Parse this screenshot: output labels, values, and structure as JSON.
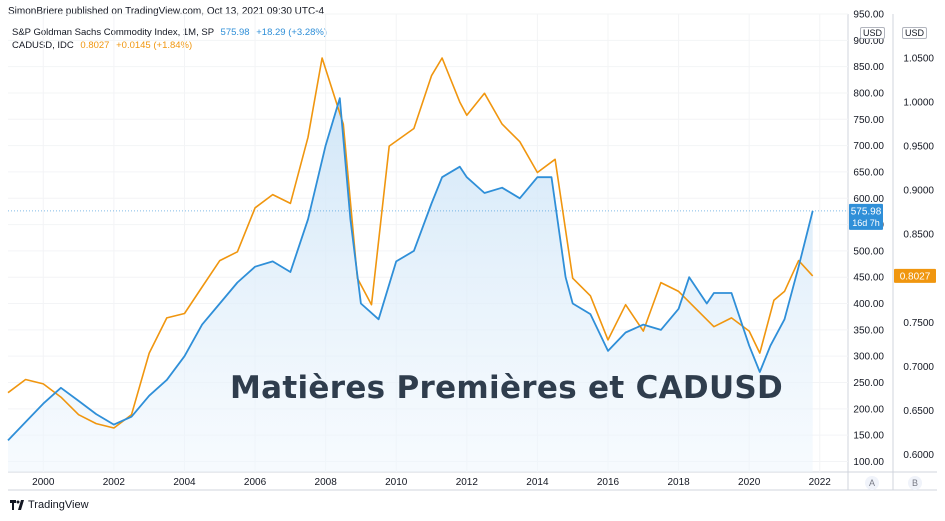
{
  "header": {
    "published": "SimonBriere published on TradingView.com, Oct 13, 2021 09:30 UTC-4"
  },
  "legend": {
    "series1_name": "S&P Goldman Sachs Commodity Index, 1M, SP",
    "series1_value": "575.98",
    "series1_change": "+18.29 (+3.28%)",
    "series2_name": "CADUSD, IDC",
    "series2_value": "0.8027",
    "series2_change": "+0.0145 (+1.84%)"
  },
  "overlay_title": "Matières Premières et CADUSD",
  "axis_units": {
    "left": "USD",
    "right": "USD"
  },
  "axis_buttons": {
    "a": "A",
    "b": "B"
  },
  "price_labels": {
    "gsci": "575.98",
    "gsci_countdown": "16d 7h",
    "cad": "0.8027"
  },
  "footer": {
    "brand": "TradingView"
  },
  "colors": {
    "gsci": "#2f8fd8",
    "cad": "#f0960f",
    "fill": "#d7e9f8",
    "grid": "#eef0f3",
    "text": "#131722"
  },
  "chart_data": {
    "type": "line",
    "title": "Matières Premières et CADUSD",
    "x_ticks": [
      "2000",
      "2002",
      "2004",
      "2006",
      "2008",
      "2010",
      "2012",
      "2014",
      "2016",
      "2018",
      "2020",
      "2022"
    ],
    "left_axis": {
      "label": "USD",
      "ticks": [
        "100.00",
        "150.00",
        "200.00",
        "250.00",
        "300.00",
        "350.00",
        "400.00",
        "450.00",
        "500.00",
        "550.00",
        "600.00",
        "650.00",
        "700.00",
        "750.00",
        "800.00",
        "850.00",
        "900.00",
        "950.00"
      ],
      "range": [
        80,
        950
      ]
    },
    "right_axis": {
      "label": "USD",
      "ticks": [
        "0.6000",
        "0.6500",
        "0.7000",
        "0.7500",
        "0.8000",
        "0.8500",
        "0.9000",
        "0.9500",
        "1.0000",
        "1.0500"
      ],
      "range": [
        0.58,
        1.1
      ]
    },
    "series": [
      {
        "name": "S&P Goldman Sachs Commodity Index",
        "axis": "left",
        "style": "area",
        "x": [
          1999.0,
          1999.5,
          2000.0,
          2000.5,
          2001.0,
          2001.5,
          2002.0,
          2002.5,
          2003.0,
          2003.5,
          2004.0,
          2004.5,
          2005.0,
          2005.5,
          2006.0,
          2006.5,
          2007.0,
          2007.5,
          2008.0,
          2008.4,
          2008.7,
          2009.0,
          2009.5,
          2010.0,
          2010.5,
          2011.0,
          2011.3,
          2011.8,
          2012.0,
          2012.5,
          2013.0,
          2013.5,
          2014.0,
          2014.4,
          2014.8,
          2015.0,
          2015.5,
          2016.0,
          2016.5,
          2017.0,
          2017.5,
          2018.0,
          2018.3,
          2018.8,
          2019.0,
          2019.5,
          2020.0,
          2020.3,
          2020.6,
          2021.0,
          2021.4,
          2021.8
        ],
        "values": [
          140,
          175,
          210,
          240,
          215,
          190,
          170,
          185,
          225,
          255,
          300,
          360,
          400,
          440,
          470,
          480,
          460,
          560,
          700,
          790,
          560,
          400,
          370,
          480,
          500,
          590,
          640,
          660,
          640,
          610,
          620,
          600,
          640,
          640,
          450,
          400,
          380,
          310,
          345,
          360,
          350,
          390,
          450,
          400,
          420,
          420,
          320,
          270,
          320,
          370,
          470,
          575.98
        ]
      },
      {
        "name": "CADUSD",
        "axis": "right",
        "style": "line",
        "x": [
          1999.0,
          1999.5,
          2000.0,
          2000.5,
          2001.0,
          2001.5,
          2002.0,
          2002.5,
          2003.0,
          2003.5,
          2004.0,
          2004.5,
          2005.0,
          2005.5,
          2006.0,
          2006.5,
          2007.0,
          2007.5,
          2007.9,
          2008.5,
          2008.9,
          2009.3,
          2009.8,
          2010.5,
          2011.0,
          2011.3,
          2011.8,
          2012.0,
          2012.5,
          2013.0,
          2013.5,
          2014.0,
          2014.5,
          2015.0,
          2015.5,
          2016.0,
          2016.5,
          2017.0,
          2017.5,
          2018.0,
          2018.5,
          2019.0,
          2019.5,
          2020.0,
          2020.3,
          2020.7,
          2021.0,
          2021.4,
          2021.8
        ],
        "values": [
          0.67,
          0.685,
          0.68,
          0.665,
          0.645,
          0.635,
          0.63,
          0.645,
          0.715,
          0.755,
          0.76,
          0.79,
          0.82,
          0.83,
          0.88,
          0.895,
          0.885,
          0.96,
          1.05,
          0.975,
          0.8,
          0.77,
          0.95,
          0.97,
          1.03,
          1.05,
          1.0,
          0.985,
          1.01,
          0.975,
          0.955,
          0.92,
          0.935,
          0.8,
          0.78,
          0.73,
          0.77,
          0.74,
          0.795,
          0.785,
          0.765,
          0.745,
          0.755,
          0.74,
          0.715,
          0.775,
          0.785,
          0.82,
          0.8027
        ]
      }
    ]
  }
}
